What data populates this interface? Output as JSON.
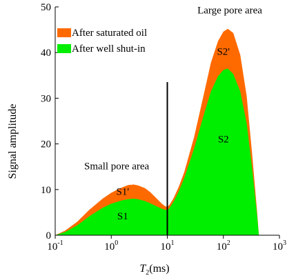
{
  "chart_data": {
    "type": "area",
    "xlabel": {
      "main": "T",
      "sub": "2",
      "unit": "(ms)"
    },
    "ylabel": "Signal amplitude",
    "xscale": "log",
    "xlim": [
      0.1,
      1000
    ],
    "ylim": [
      0,
      50
    ],
    "yticks": [
      0,
      10,
      20,
      30,
      40,
      50
    ],
    "xticks": [
      {
        "value": 0.1,
        "base": "10",
        "exp": "-1"
      },
      {
        "value": 1,
        "base": "10",
        "exp": "0"
      },
      {
        "value": 10,
        "base": "10",
        "exp": "1"
      },
      {
        "value": 100,
        "base": "10",
        "exp": "2"
      },
      {
        "value": 1000,
        "base": "10",
        "exp": "3"
      }
    ],
    "legend": {
      "position": "top-left"
    },
    "grid": false,
    "series": [
      {
        "name": "After saturated oil",
        "color": "#FF6A00",
        "x": [
          0.1,
          0.15,
          0.25,
          0.4,
          0.7,
          1.0,
          1.5,
          2.0,
          2.5,
          3.0,
          4.0,
          5.0,
          6.5,
          8.0,
          9.0,
          10.0,
          11.0,
          13.0,
          16.0,
          20.0,
          30.0,
          45.0,
          60.0,
          80.0,
          100.0,
          120.0,
          150.0,
          200.0,
          260.0,
          330.0,
          400.0,
          430.0
        ],
        "y": [
          0,
          1.0,
          3.0,
          5.5,
          8.0,
          9.3,
          10.4,
          11.0,
          11.1,
          10.9,
          10.3,
          9.4,
          8.0,
          6.9,
          6.4,
          6.2,
          6.7,
          8.2,
          10.6,
          13.8,
          21.5,
          31.0,
          37.8,
          42.5,
          44.6,
          45.2,
          44.3,
          39.5,
          30.5,
          17.0,
          5.0,
          0
        ]
      },
      {
        "name": "After well shut-in",
        "color": "#00EE00",
        "x": [
          0.1,
          0.15,
          0.25,
          0.4,
          0.7,
          1.0,
          1.5,
          2.0,
          2.5,
          3.0,
          4.0,
          5.0,
          6.5,
          8.0,
          9.0,
          10.0,
          11.0,
          13.0,
          16.0,
          20.0,
          30.0,
          45.0,
          60.0,
          80.0,
          100.0,
          120.0,
          150.0,
          200.0,
          260.0,
          330.0,
          400.0,
          430.0
        ],
        "y": [
          0,
          0.7,
          2.2,
          4.1,
          6.0,
          6.9,
          7.6,
          7.9,
          8.0,
          7.9,
          7.5,
          7.0,
          6.3,
          5.8,
          5.6,
          5.5,
          6.0,
          7.4,
          9.6,
          12.5,
          19.0,
          26.5,
          31.5,
          34.8,
          36.2,
          36.5,
          35.3,
          31.5,
          24.5,
          14.0,
          4.2,
          0
        ]
      }
    ],
    "divider_x": 10,
    "annotations": [
      {
        "text": "Large pore area",
        "x": 130,
        "y": 48.6
      },
      {
        "text": "Small pore area",
        "x": 1.25,
        "y": 14.4
      },
      {
        "text": "S2'",
        "x": 100,
        "y": 39.5
      },
      {
        "text": "S1'",
        "x": 1.6,
        "y": 8.8
      },
      {
        "text": "S2",
        "x": 100,
        "y": 20.3
      },
      {
        "text": "S1",
        "x": 1.6,
        "y": 3.5
      }
    ]
  }
}
